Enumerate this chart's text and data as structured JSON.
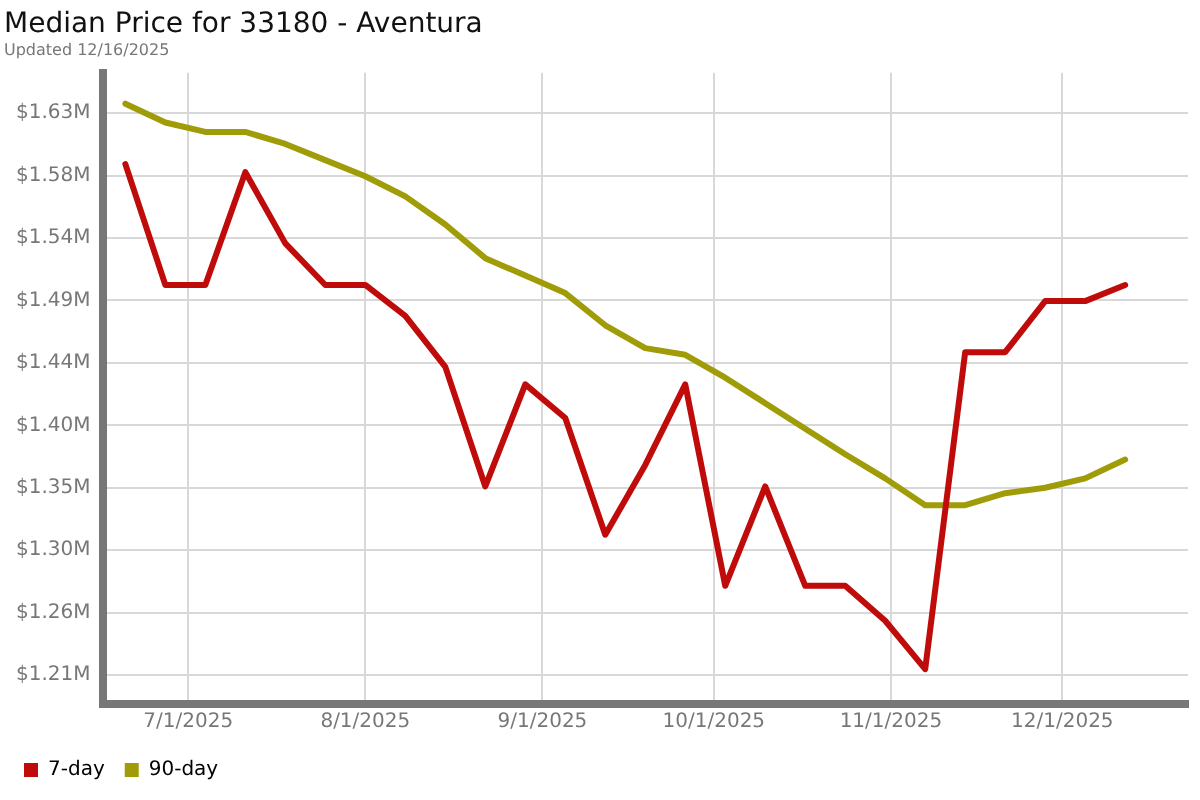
{
  "chart_data": {
    "type": "line",
    "title": "Median Price for 33180 - Aventura",
    "subtitle": "Updated 12/16/2025",
    "x": [
      "2025-06-20",
      "2025-06-27",
      "2025-07-04",
      "2025-07-11",
      "2025-07-18",
      "2025-07-25",
      "2025-08-01",
      "2025-08-08",
      "2025-08-15",
      "2025-08-22",
      "2025-08-29",
      "2025-09-05",
      "2025-09-12",
      "2025-09-19",
      "2025-09-26",
      "2025-10-03",
      "2025-10-10",
      "2025-10-17",
      "2025-10-24",
      "2025-10-31",
      "2025-11-07",
      "2025-11-14",
      "2025-11-21",
      "2025-11-28",
      "2025-12-05",
      "2025-12-12"
    ],
    "series": [
      {
        "name": "7-day",
        "color": "#c00b0b",
        "values": [
          1.592,
          1.502,
          1.502,
          1.586,
          1.533,
          1.502,
          1.502,
          1.479,
          1.441,
          1.352,
          1.428,
          1.403,
          1.316,
          1.368,
          1.428,
          1.278,
          1.352,
          1.278,
          1.278,
          1.252,
          1.216,
          1.452,
          1.452,
          1.49,
          1.49,
          1.502
        ]
      },
      {
        "name": "90-day",
        "color": "#a09c08",
        "values": [
          1.637,
          1.623,
          1.616,
          1.616,
          1.607,
          1.595,
          1.583,
          1.568,
          1.547,
          1.522,
          1.509,
          1.496,
          1.472,
          1.455,
          1.45,
          1.433,
          1.414,
          1.395,
          1.376,
          1.358,
          1.338,
          1.338,
          1.347,
          1.351,
          1.358,
          1.372
        ]
      }
    ],
    "xlim": [
      "2025-06-16",
      "2025-12-23"
    ],
    "xticks": [
      {
        "value": "2025-07-01",
        "label": "7/1/2025"
      },
      {
        "value": "2025-08-01",
        "label": "8/1/2025"
      },
      {
        "value": "2025-09-01",
        "label": "9/1/2025"
      },
      {
        "value": "2025-10-01",
        "label": "10/1/2025"
      },
      {
        "value": "2025-11-01",
        "label": "11/1/2025"
      },
      {
        "value": "2025-12-01",
        "label": "12/1/2025"
      }
    ],
    "ylim": [
      1.19,
      1.66
    ],
    "yticks": [
      {
        "value": 1.2115,
        "label": "$1.21M"
      },
      {
        "value": 1.258,
        "label": "$1.26M"
      },
      {
        "value": 1.3045,
        "label": "$1.30M"
      },
      {
        "value": 1.351,
        "label": "$1.35M"
      },
      {
        "value": 1.3975,
        "label": "$1.40M"
      },
      {
        "value": 1.444,
        "label": "$1.44M"
      },
      {
        "value": 1.4905,
        "label": "$1.49M"
      },
      {
        "value": 1.537,
        "label": "$1.54M"
      },
      {
        "value": 1.5835,
        "label": "$1.58M"
      },
      {
        "value": 1.63,
        "label": "$1.63M"
      }
    ],
    "grid": true,
    "legend": "bottom left",
    "marker": "none",
    "line_style": "solid"
  }
}
